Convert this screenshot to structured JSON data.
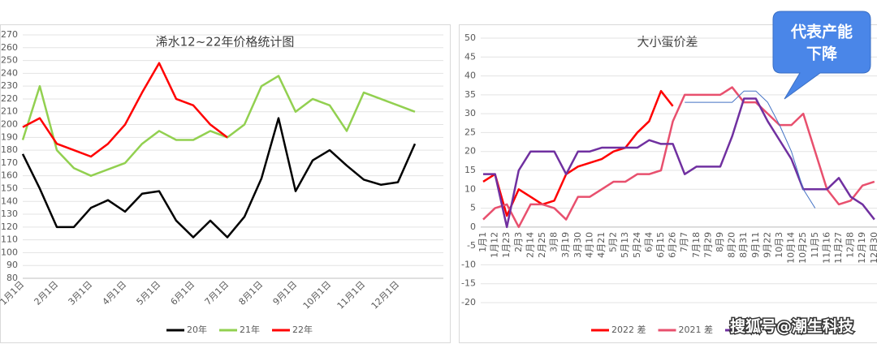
{
  "chart_data": [
    {
      "type": "line",
      "title": "浠水12~22年价格统计图",
      "categories": [
        "1月1日",
        null,
        "2月1日",
        null,
        "3月1日",
        null,
        "4月1日",
        null,
        "5月1日",
        null,
        "6月1日",
        null,
        "7月1日",
        null,
        "8月1日",
        null,
        "9月1日",
        null,
        "10月1日",
        null,
        "11月1日",
        null,
        "12月1日",
        null
      ],
      "series": [
        {
          "name": "20年",
          "color": "#000000",
          "values": [
            177,
            150,
            120,
            120,
            135,
            141,
            132,
            146,
            148,
            125,
            112,
            125,
            112,
            128,
            158,
            205,
            148,
            172,
            180,
            168,
            157,
            153,
            155,
            185
          ]
        },
        {
          "name": "21年",
          "color": "#92d050",
          "values": [
            188,
            230,
            180,
            166,
            160,
            165,
            170,
            185,
            195,
            188,
            188,
            195,
            190,
            200,
            230,
            238,
            210,
            220,
            215,
            195,
            225,
            220,
            215,
            210
          ]
        },
        {
          "name": "22年",
          "color": "#ff0000",
          "values": [
            198,
            205,
            185,
            180,
            175,
            185,
            200,
            225,
            248,
            220,
            215,
            200,
            190,
            null,
            null,
            null,
            null,
            null,
            null,
            null,
            null,
            null,
            null,
            null
          ]
        }
      ],
      "ylim": [
        80,
        270
      ],
      "yticks": [
        80,
        90,
        100,
        110,
        120,
        130,
        140,
        150,
        160,
        170,
        180,
        190,
        200,
        210,
        220,
        230,
        240,
        250,
        260,
        270
      ],
      "grid": true
    },
    {
      "type": "line",
      "title": "大小蛋价差",
      "categories": [
        "1月1",
        "1月12",
        "1月23",
        "2月3",
        "2月14",
        "2月25",
        "3月8",
        "3月19",
        "3月30",
        "4月10",
        "4月21",
        "5月2",
        "5月13",
        "5月24",
        "6月4",
        "6月15",
        "6月26",
        "7月7",
        "7月18",
        "7月29",
        "8月9",
        "8月20",
        "8月31",
        "9月11",
        "9月22",
        "10月3",
        "10月14",
        "10月25",
        "11月5",
        "11月16",
        "11月27",
        "12月8",
        "12月19",
        "12月30"
      ],
      "series": [
        {
          "name": "2022 差",
          "color": "#ff0000",
          "values": [
            12,
            14,
            3,
            10,
            8,
            6,
            7,
            14,
            16,
            17,
            18,
            20,
            21,
            25,
            28,
            36,
            32,
            null,
            null,
            null,
            null,
            null,
            null,
            null,
            null,
            null,
            null,
            null,
            null,
            null,
            null,
            null,
            null,
            null
          ]
        },
        {
          "name": "2021 差",
          "color": "#e8506e",
          "values": [
            2,
            5,
            6,
            0,
            6,
            6,
            5,
            2,
            8,
            8,
            10,
            12,
            12,
            14,
            14,
            15,
            28,
            35,
            35,
            35,
            35,
            37,
            33,
            33,
            30,
            27,
            27,
            30,
            20,
            10,
            6,
            7,
            11,
            12
          ]
        },
        {
          "color": "#7030a0",
          "values": [
            14,
            14,
            0,
            15,
            20,
            20,
            20,
            14,
            20,
            20,
            21,
            21,
            21,
            21,
            23,
            22,
            22,
            14,
            16,
            16,
            16,
            24,
            34,
            34,
            28,
            23,
            18,
            10,
            10,
            10,
            13,
            8,
            6,
            2
          ]
        },
        {
          "color": "#4472c4",
          "values": [
            null,
            null,
            null,
            null,
            null,
            null,
            null,
            null,
            null,
            null,
            null,
            null,
            null,
            null,
            null,
            null,
            null,
            33,
            33,
            33,
            33,
            33,
            36,
            36,
            33,
            27,
            20,
            10,
            5,
            null,
            null,
            null,
            null,
            null
          ]
        }
      ],
      "ylim": [
        -20,
        50
      ],
      "yticks": [
        -20,
        -15,
        -10,
        -5,
        0,
        5,
        10,
        15,
        20,
        25,
        30,
        35,
        40,
        45,
        50
      ],
      "grid": true,
      "annotation": [
        "代表产能",
        "下降"
      ]
    }
  ],
  "watermark": "搜狐号@潮生科技"
}
